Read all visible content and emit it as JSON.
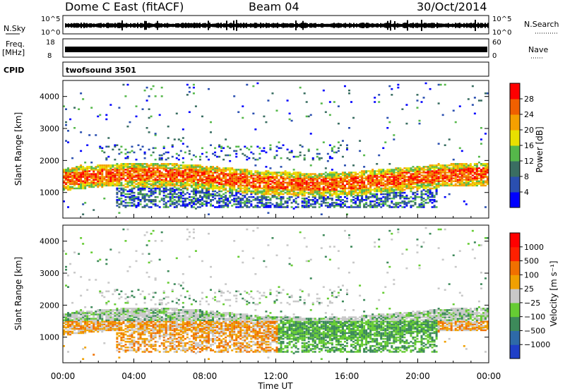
{
  "header": {
    "station": "Dome C East (fitACF)",
    "beam": "Beam 04",
    "date": "30/Oct/2014"
  },
  "aux_panels": {
    "nsky": {
      "label": "N.Sky",
      "top_tick": "10^5",
      "bottom_tick": "10^0"
    },
    "nsearch": {
      "label": "N.Search",
      "top_tick": "10^5",
      "bottom_tick": "10^0"
    },
    "freq": {
      "label_line1": "Freq.",
      "label_line2": "[MHz]",
      "top_tick": "18",
      "bottom_tick": "8"
    },
    "nave": {
      "label": "Nave",
      "top_tick": "60",
      "bottom_tick": "0"
    },
    "cpid": {
      "label": "CPID",
      "value": "twofsound 3501"
    }
  },
  "chart_data": [
    {
      "type": "heatmap",
      "panel": "power",
      "ylabel": "Slant Range [km]",
      "xlabel": "Time UT",
      "xlim_hours": [
        0,
        24
      ],
      "ylim": [
        200,
        4500
      ],
      "y_ticks": [
        "1000",
        "2000",
        "3000",
        "4000"
      ],
      "x_ticks": [
        "00:00",
        "04:00",
        "08:00",
        "12:00",
        "16:00",
        "20:00",
        "00:00"
      ],
      "colorbar": {
        "label": "Power [dB]",
        "ticks": [
          "4",
          "8",
          "12",
          "16",
          "20",
          "24",
          "28"
        ],
        "colors": [
          "#0000ff",
          "#2a4fb0",
          "#3a6e62",
          "#55b84a",
          "#e8e000",
          "#f5a000",
          "#f06000",
          "#ff0000"
        ]
      }
    },
    {
      "type": "heatmap",
      "panel": "velocity",
      "ylabel": "Slant Range [km]",
      "xlabel": "Time UT",
      "xlim_hours": [
        0,
        24
      ],
      "ylim": [
        200,
        4500
      ],
      "y_ticks": [
        "1000",
        "2000",
        "3000",
        "4000"
      ],
      "x_ticks": [
        "00:00",
        "04:00",
        "08:00",
        "12:00",
        "16:00",
        "20:00",
        "00:00"
      ],
      "colorbar": {
        "label": "Velocity [m s⁻¹]",
        "ticks": [
          "1000",
          "500",
          "100",
          "25",
          "−25",
          "−100",
          "−500",
          "−1000"
        ],
        "colors": [
          "#1f3fc8",
          "#2e6aa8",
          "#3d8a5a",
          "#66cc33",
          "#c8c8c8",
          "#f0a000",
          "#f07000",
          "#ff2000",
          "#ff0000"
        ]
      }
    }
  ],
  "xaxis": {
    "label": "Time UT"
  }
}
